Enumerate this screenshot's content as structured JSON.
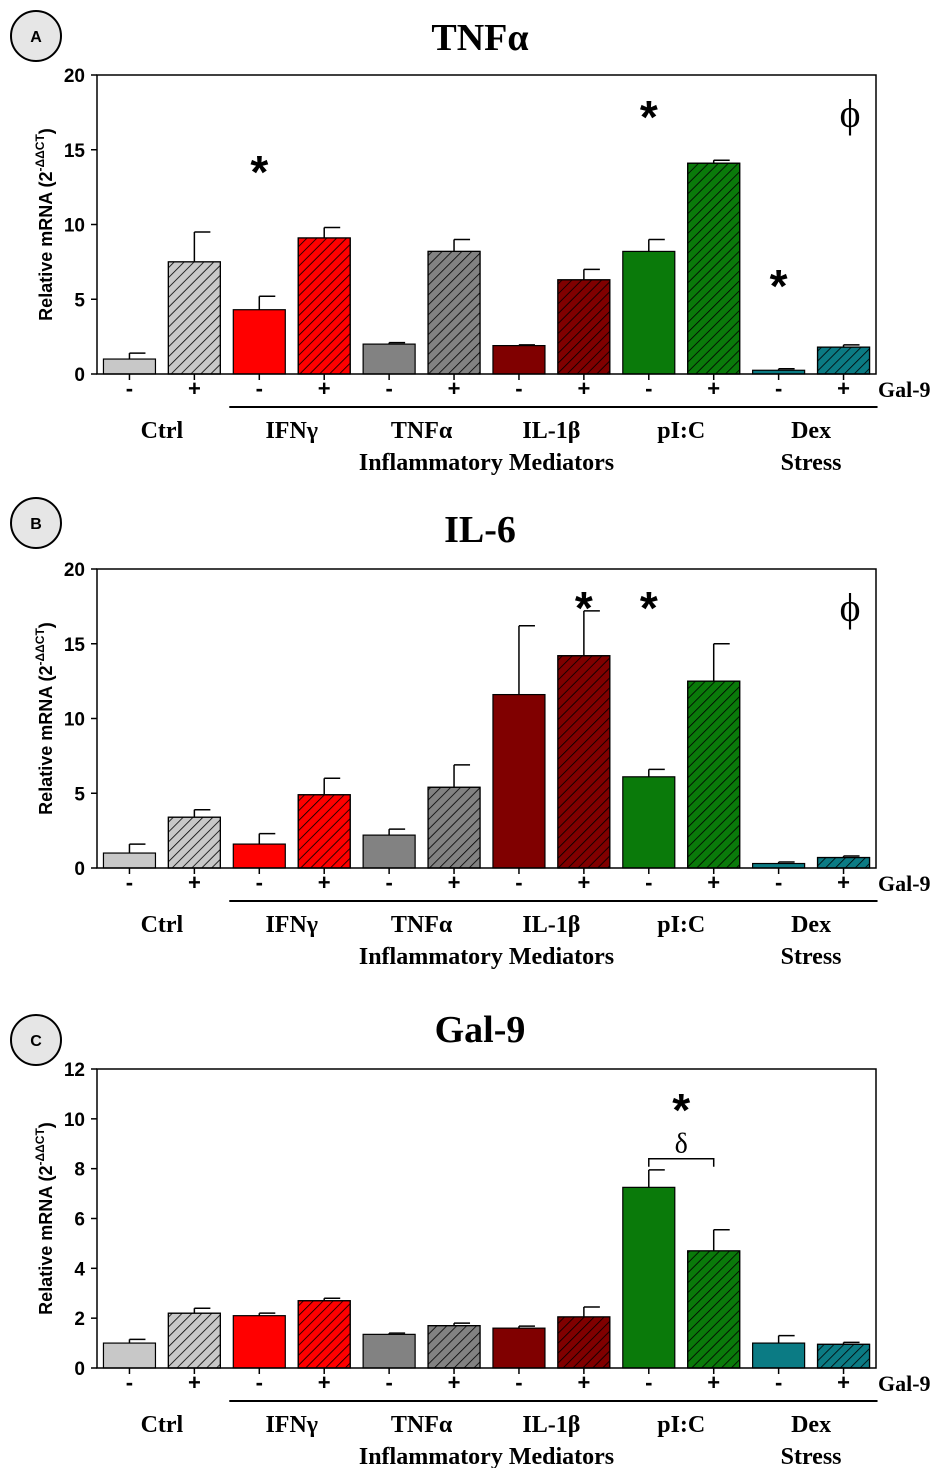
{
  "colors": {
    "ctrl": "#c8c8c8",
    "ifng": "#ff0000",
    "tnfa": "#828282",
    "il1b": "#800000",
    "pic": "#0a7a0a",
    "dex": "#0b7b84"
  },
  "sign_labels": [
    "-",
    "+"
  ],
  "row_label": "Gal-9",
  "groups": {
    "ctrl": "Ctrl",
    "ifng": "IFNγ",
    "tnfa": "TNFα",
    "il1b": "IL-1β",
    "pic": "pI:C",
    "dex": "Dex"
  },
  "bracket_labels": {
    "inflammatory": "Inflammatory Mediators",
    "stress": "Stress"
  },
  "chart_data": [
    {
      "type": "bar",
      "panel_label": "A",
      "title": "TNFα",
      "ylabel": "Relative mRNA (2",
      "ylabel_sup": "-ΔΔCT",
      "ylabel_end": ")",
      "ylim": [
        0,
        20
      ],
      "yticks": [
        0,
        5,
        10,
        15,
        20
      ],
      "categories": [
        "Ctrl -",
        "Ctrl +",
        "IFNγ -",
        "IFNγ +",
        "TNFα -",
        "TNFα +",
        "IL-1β -",
        "IL-1β +",
        "pI:C -",
        "pI:C +",
        "Dex -",
        "Dex +"
      ],
      "values": [
        1.0,
        7.5,
        4.3,
        9.1,
        2.0,
        8.2,
        1.9,
        6.3,
        8.2,
        14.1,
        0.25,
        1.8
      ],
      "errors": [
        0.4,
        2.0,
        0.9,
        0.7,
        0.1,
        0.8,
        0.05,
        0.7,
        0.8,
        0.2,
        0.1,
        0.15
      ],
      "stars": [
        {
          "x": "IFNγ -",
          "y": 13.9
        },
        {
          "x": "pI:C -",
          "y": 17.6
        },
        {
          "x": "Dex -",
          "y": 6.3
        }
      ],
      "phi": "ϕ",
      "star_text": "*"
    },
    {
      "type": "bar",
      "panel_label": "B",
      "title": "IL-6",
      "ylabel": "Relative mRNA (2",
      "ylabel_sup": "-ΔΔCT",
      "ylabel_end": ")",
      "ylim": [
        0,
        20
      ],
      "yticks": [
        0,
        5,
        10,
        15,
        20
      ],
      "categories": [
        "Ctrl -",
        "Ctrl +",
        "IFNγ -",
        "IFNγ +",
        "TNFα -",
        "TNFα +",
        "IL-1β -",
        "IL-1β +",
        "pI:C -",
        "pI:C +",
        "Dex -",
        "Dex +"
      ],
      "values": [
        1.0,
        3.4,
        1.6,
        4.9,
        2.2,
        5.4,
        11.6,
        14.2,
        6.1,
        12.5,
        0.3,
        0.7
      ],
      "errors": [
        0.6,
        0.5,
        0.7,
        1.1,
        0.4,
        1.5,
        4.6,
        3.0,
        0.5,
        2.5,
        0.1,
        0.1
      ],
      "stars": [
        {
          "x": "IL-1β +",
          "y": 17.8
        },
        {
          "x": "pI:C -",
          "y": 17.8
        }
      ],
      "phi": "ϕ",
      "star_text": "*"
    },
    {
      "type": "bar",
      "panel_label": "C",
      "title": "Gal-9",
      "ylabel": "Relative mRNA (2",
      "ylabel_sup": "-ΔΔCT",
      "ylabel_end": ")",
      "ylim": [
        0,
        12
      ],
      "yticks": [
        0,
        2,
        4,
        6,
        8,
        10,
        12
      ],
      "categories": [
        "Ctrl -",
        "Ctrl +",
        "IFNγ -",
        "IFNγ +",
        "TNFα -",
        "TNFα +",
        "IL-1β -",
        "IL-1β +",
        "pI:C -",
        "pI:C +",
        "Dex -",
        "Dex +"
      ],
      "values": [
        1.0,
        2.2,
        2.1,
        2.7,
        1.35,
        1.7,
        1.6,
        2.05,
        7.25,
        4.7,
        1.0,
        0.95
      ],
      "errors": [
        0.15,
        0.2,
        0.1,
        0.1,
        0.05,
        0.1,
        0.08,
        0.4,
        0.7,
        0.85,
        0.3,
        0.08
      ],
      "stars": [
        {
          "x": "pI:C",
          "y": 10.6
        }
      ],
      "delta": "δ",
      "star_text": "*"
    }
  ]
}
